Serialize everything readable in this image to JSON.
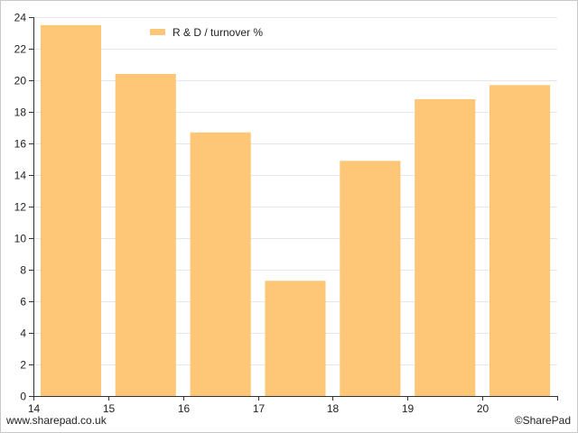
{
  "chart_data": {
    "type": "bar",
    "x": [
      14.5,
      15.5,
      16.5,
      17.5,
      18.5,
      19.5,
      20.5
    ],
    "values": [
      23.5,
      20.4,
      16.7,
      7.3,
      14.9,
      18.8,
      19.7
    ],
    "series": [
      {
        "name": "R & D / turnover %",
        "values": [
          23.5,
          20.4,
          16.7,
          7.3,
          14.9,
          18.8,
          19.7
        ]
      }
    ],
    "xlim": [
      14,
      21
    ],
    "ylim": [
      0,
      24
    ],
    "xticks": [
      14,
      15,
      16,
      17,
      18,
      19,
      20
    ],
    "yticks": [
      0,
      2,
      4,
      6,
      8,
      10,
      12,
      14,
      16,
      18,
      20,
      22,
      24
    ],
    "grid": "horizontal",
    "legend_position": "top-left",
    "bar_color": "#fec677"
  },
  "footer": {
    "source": "www.sharepad.co.uk",
    "copyright": "©SharePad"
  }
}
